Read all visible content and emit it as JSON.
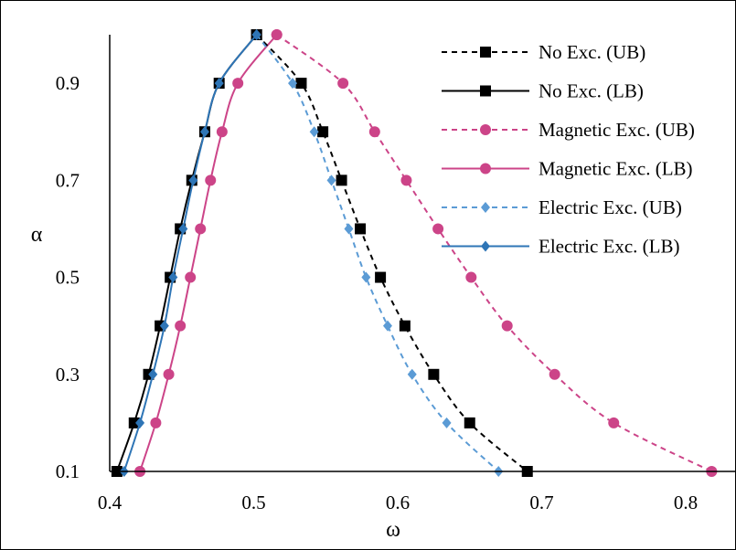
{
  "chart_data": {
    "type": "line",
    "title": "",
    "xlabel": "ω",
    "ylabel": "α",
    "xlim": [
      0.4,
      0.8
    ],
    "ylim": [
      0.1,
      1.0
    ],
    "x_ticks": [
      "0.4",
      "0.5",
      "0.6",
      "0.7",
      "0.8"
    ],
    "y_ticks": [
      "0.1",
      "0.3",
      "0.5",
      "0.7",
      "0.9"
    ],
    "grid": false,
    "legend_position": "top-right",
    "series": [
      {
        "name": "No Exc. (UB)",
        "color": "#000000",
        "dash": true,
        "marker": "square",
        "points": [
          [
            0.502,
            1.0
          ],
          [
            0.533,
            0.9
          ],
          [
            0.548,
            0.8
          ],
          [
            0.561,
            0.7
          ],
          [
            0.574,
            0.6
          ],
          [
            0.588,
            0.5
          ],
          [
            0.605,
            0.4
          ],
          [
            0.625,
            0.3
          ],
          [
            0.65,
            0.2
          ],
          [
            0.69,
            0.1
          ]
        ]
      },
      {
        "name": "No Exc. (LB)",
        "color": "#000000",
        "dash": false,
        "marker": "square",
        "points": [
          [
            0.405,
            0.1
          ],
          [
            0.417,
            0.2
          ],
          [
            0.427,
            0.3
          ],
          [
            0.435,
            0.4
          ],
          [
            0.442,
            0.5
          ],
          [
            0.449,
            0.6
          ],
          [
            0.457,
            0.7
          ],
          [
            0.466,
            0.8
          ],
          [
            0.476,
            0.9
          ],
          [
            0.502,
            1.0
          ]
        ]
      },
      {
        "name": "Magnetic Exc. (UB)",
        "color": "#CC4488",
        "dash": true,
        "marker": "circle",
        "points": [
          [
            0.516,
            1.0
          ],
          [
            0.562,
            0.9
          ],
          [
            0.584,
            0.8
          ],
          [
            0.606,
            0.7
          ],
          [
            0.628,
            0.6
          ],
          [
            0.651,
            0.5
          ],
          [
            0.676,
            0.4
          ],
          [
            0.709,
            0.3
          ],
          [
            0.75,
            0.2
          ],
          [
            0.818,
            0.1
          ]
        ]
      },
      {
        "name": "Magnetic Exc. (LB)",
        "color": "#CC4488",
        "dash": false,
        "marker": "circle",
        "points": [
          [
            0.421,
            0.1
          ],
          [
            0.432,
            0.2
          ],
          [
            0.441,
            0.3
          ],
          [
            0.449,
            0.4
          ],
          [
            0.456,
            0.5
          ],
          [
            0.463,
            0.6
          ],
          [
            0.47,
            0.7
          ],
          [
            0.478,
            0.8
          ],
          [
            0.489,
            0.9
          ],
          [
            0.516,
            1.0
          ]
        ]
      },
      {
        "name": "Electric Exc. (UB)",
        "color": "#5B9BD5",
        "dash": true,
        "marker": "diamond",
        "points": [
          [
            0.502,
            1.0
          ],
          [
            0.527,
            0.9
          ],
          [
            0.542,
            0.8
          ],
          [
            0.554,
            0.7
          ],
          [
            0.566,
            0.6
          ],
          [
            0.578,
            0.5
          ],
          [
            0.593,
            0.4
          ],
          [
            0.61,
            0.3
          ],
          [
            0.634,
            0.2
          ],
          [
            0.67,
            0.1
          ]
        ]
      },
      {
        "name": "Electric Exc. (LB)",
        "color": "#2E75B6",
        "dash": false,
        "marker": "diamond",
        "points": [
          [
            0.41,
            0.1
          ],
          [
            0.421,
            0.2
          ],
          [
            0.43,
            0.3
          ],
          [
            0.438,
            0.4
          ],
          [
            0.444,
            0.5
          ],
          [
            0.451,
            0.6
          ],
          [
            0.458,
            0.7
          ],
          [
            0.466,
            0.8
          ],
          [
            0.476,
            0.9
          ],
          [
            0.502,
            1.0
          ]
        ]
      }
    ]
  }
}
